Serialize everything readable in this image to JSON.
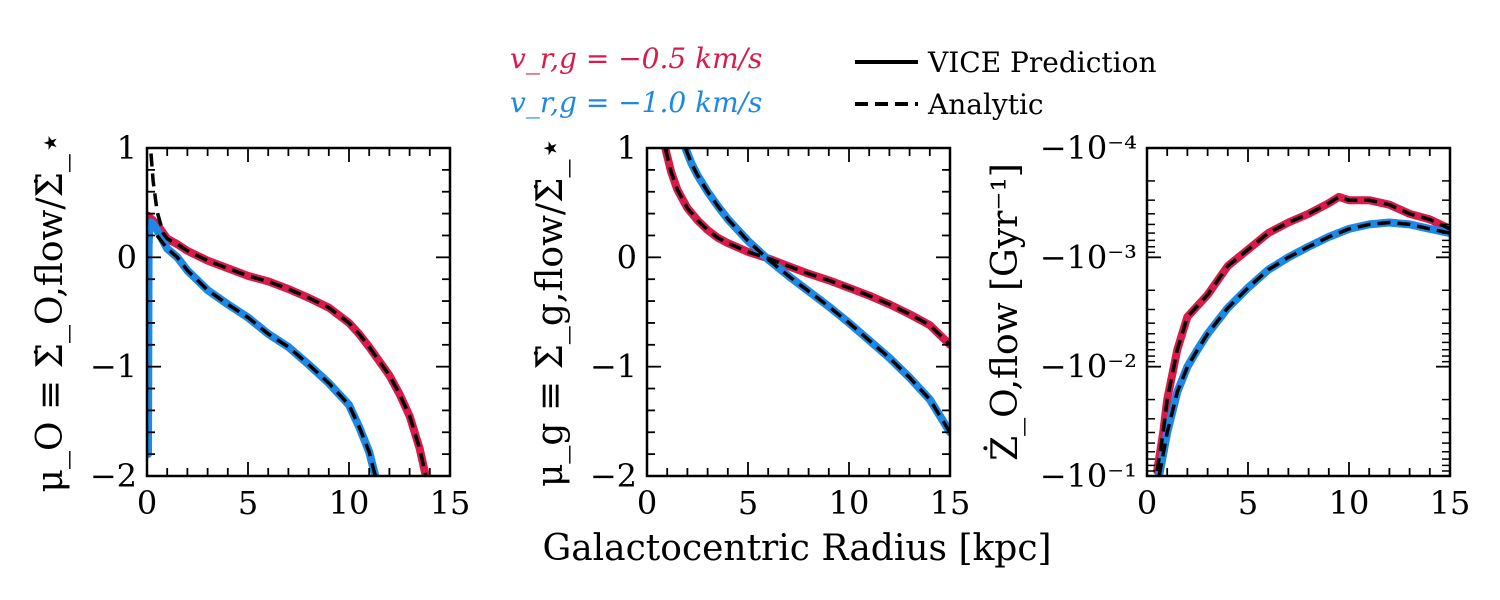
{
  "chart_data": [
    {
      "type": "line",
      "panel": "left",
      "ylabel": "μ_O ≡ Σ̇_O,flow/Σ̇_⋆",
      "xlim": [
        0,
        15
      ],
      "ylim": [
        -2,
        1
      ],
      "xticks": [
        0,
        5,
        10,
        15
      ],
      "xtick_labels": [
        "0",
        "5",
        "10",
        "15"
      ],
      "yticks": [
        -2,
        -1,
        0,
        1
      ],
      "ytick_labels": [
        "−2",
        "−1",
        "0",
        "1"
      ],
      "yscale": "linear",
      "series": [
        {
          "name": "v_r,g = −0.5 km/s",
          "style": "VICE Prediction",
          "color": "#d81b4a",
          "x": [
            0.05,
            0.5,
            1,
            1.5,
            2,
            3,
            4,
            5,
            6,
            7,
            8,
            9,
            10,
            10.5,
            11,
            11.5,
            12,
            12.5,
            13,
            13.5,
            13.8
          ],
          "y": [
            0.38,
            0.3,
            0.17,
            0.12,
            0.06,
            -0.03,
            -0.1,
            -0.17,
            -0.22,
            -0.29,
            -0.37,
            -0.46,
            -0.6,
            -0.7,
            -0.82,
            -0.95,
            -1.08,
            -1.25,
            -1.45,
            -1.75,
            -2.0
          ]
        },
        {
          "name": "v_r,g = −0.5 km/s",
          "style": "Analytic",
          "color": "#000000",
          "x": [
            0.2,
            0.3,
            0.5,
            0.8,
            1,
            1.5,
            2,
            3,
            4,
            5,
            6,
            7,
            8,
            9,
            10,
            10.5,
            11,
            11.5,
            12,
            12.5,
            13,
            13.5,
            13.8
          ],
          "y": [
            0.95,
            0.7,
            0.42,
            0.22,
            0.17,
            0.12,
            0.06,
            -0.03,
            -0.1,
            -0.17,
            -0.22,
            -0.29,
            -0.37,
            -0.46,
            -0.6,
            -0.7,
            -0.82,
            -0.95,
            -1.08,
            -1.25,
            -1.45,
            -1.75,
            -2.0
          ]
        },
        {
          "name": "v_r,g = −1.0 km/s",
          "style": "VICE Prediction",
          "color": "#1e88e5",
          "x": [
            0.05,
            0.08,
            0.12,
            0.2,
            0.3,
            0.5,
            1,
            1.5,
            2,
            3,
            4,
            5,
            6,
            7,
            8,
            9,
            10,
            10.5,
            11,
            11.3
          ],
          "y": [
            -1.8,
            0.1,
            0.3,
            0.32,
            0.3,
            0.25,
            0.08,
            0.0,
            -0.12,
            -0.3,
            -0.43,
            -0.55,
            -0.7,
            -0.82,
            -0.98,
            -1.15,
            -1.35,
            -1.55,
            -1.78,
            -2.0
          ]
        },
        {
          "name": "v_r,g = −1.0 km/s",
          "style": "Analytic",
          "color": "#000000",
          "x": [
            0.5,
            1,
            1.5,
            2,
            3,
            4,
            5,
            6,
            7,
            8,
            9,
            10,
            10.5,
            11,
            11.3
          ],
          "y": [
            0.2,
            0.08,
            0.0,
            -0.12,
            -0.3,
            -0.43,
            -0.55,
            -0.7,
            -0.82,
            -0.98,
            -1.15,
            -1.35,
            -1.55,
            -1.78,
            -2.0
          ]
        }
      ]
    },
    {
      "type": "line",
      "panel": "middle",
      "ylabel": "μ_g ≡ Σ̇_g,flow/Σ̇_⋆",
      "xlim": [
        0,
        15
      ],
      "ylim": [
        -2,
        1
      ],
      "xticks": [
        0,
        5,
        10,
        15
      ],
      "xtick_labels": [
        "0",
        "5",
        "10",
        "15"
      ],
      "yticks": [
        -2,
        -1,
        0,
        1
      ],
      "ytick_labels": [
        "−2",
        "−1",
        "0",
        "1"
      ],
      "yscale": "linear",
      "series": [
        {
          "name": "v_r,g = −0.5 km/s",
          "style": "VICE Prediction",
          "color": "#d81b4a",
          "x": [
            0.9,
            1.2,
            1.5,
            2,
            2.5,
            3,
            3.5,
            4,
            5,
            6,
            7,
            8,
            9,
            10,
            11,
            12,
            13,
            14,
            15
          ],
          "y": [
            1.0,
            0.78,
            0.62,
            0.45,
            0.34,
            0.25,
            0.18,
            0.13,
            0.05,
            -0.01,
            -0.08,
            -0.15,
            -0.21,
            -0.28,
            -0.35,
            -0.43,
            -0.52,
            -0.62,
            -0.8
          ]
        },
        {
          "name": "v_r,g = −0.5 km/s",
          "style": "Analytic",
          "color": "#000000",
          "x": [
            0.9,
            1.2,
            1.5,
            2,
            2.5,
            3,
            3.5,
            4,
            5,
            6,
            7,
            8,
            9,
            10,
            11,
            12,
            13,
            14,
            15
          ],
          "y": [
            1.0,
            0.78,
            0.62,
            0.45,
            0.34,
            0.25,
            0.18,
            0.13,
            0.05,
            -0.01,
            -0.08,
            -0.15,
            -0.21,
            -0.28,
            -0.35,
            -0.43,
            -0.52,
            -0.62,
            -0.8
          ]
        },
        {
          "name": "v_r,g = −1.0 km/s",
          "style": "VICE Prediction",
          "color": "#1e88e5",
          "x": [
            1.9,
            2.2,
            2.5,
            3,
            3.5,
            4,
            5,
            6,
            7,
            8,
            9,
            10,
            11,
            12,
            13,
            14,
            15
          ],
          "y": [
            1.0,
            0.86,
            0.75,
            0.6,
            0.47,
            0.35,
            0.15,
            -0.02,
            -0.17,
            -0.31,
            -0.45,
            -0.6,
            -0.76,
            -0.92,
            -1.1,
            -1.3,
            -1.6
          ]
        },
        {
          "name": "v_r,g = −1.0 km/s",
          "style": "Analytic",
          "color": "#000000",
          "x": [
            1.9,
            2.2,
            2.5,
            3,
            3.5,
            4,
            5,
            6,
            7,
            8,
            9,
            10,
            11,
            12,
            13,
            14,
            15
          ],
          "y": [
            1.0,
            0.86,
            0.75,
            0.6,
            0.47,
            0.35,
            0.15,
            -0.02,
            -0.17,
            -0.31,
            -0.45,
            -0.6,
            -0.76,
            -0.92,
            -1.1,
            -1.3,
            -1.6
          ]
        }
      ]
    },
    {
      "type": "line",
      "panel": "right",
      "ylabel": "Ż_O,flow [Gyr⁻¹]",
      "xlim": [
        0,
        15
      ],
      "ylim": [
        -0.1,
        -0.0001
      ],
      "yscale": "symlog-negative",
      "xticks": [
        0,
        5,
        10,
        15
      ],
      "xtick_labels": [
        "0",
        "5",
        "10",
        "15"
      ],
      "ytick_labels": [
        "−10⁻⁴",
        "−10⁻³",
        "−10⁻²",
        "−10⁻¹"
      ],
      "series": [
        {
          "name": "v_r,g = −0.5 km/s",
          "style": "VICE Prediction",
          "color": "#d81b4a",
          "x": [
            0.5,
            0.8,
            1,
            1.5,
            2,
            3,
            4,
            5,
            6,
            7,
            8,
            9,
            9.5,
            10,
            11,
            12,
            13,
            14,
            15
          ],
          "y": [
            -0.09,
            -0.04,
            -0.02,
            -0.007,
            -0.0035,
            -0.0022,
            -0.0012,
            -0.00085,
            -0.0006,
            -0.00048,
            -0.0004,
            -0.00032,
            -0.00028,
            -0.0003,
            -0.0003,
            -0.00033,
            -0.0004,
            -0.00045,
            -0.00055
          ]
        },
        {
          "name": "v_r,g = −0.5 km/s",
          "style": "Analytic",
          "color": "#000000",
          "x": [
            0.5,
            0.8,
            1,
            1.5,
            2,
            3,
            4,
            5,
            6,
            7,
            8,
            9,
            9.5,
            10,
            11,
            12,
            13,
            14,
            15
          ],
          "y": [
            -0.09,
            -0.04,
            -0.02,
            -0.007,
            -0.0035,
            -0.0022,
            -0.0012,
            -0.00085,
            -0.0006,
            -0.00048,
            -0.0004,
            -0.00032,
            -0.00028,
            -0.0003,
            -0.0003,
            -0.00033,
            -0.0004,
            -0.00045,
            -0.00055
          ]
        },
        {
          "name": "v_r,g = −1.0 km/s",
          "style": "VICE Prediction",
          "color": "#1e88e5",
          "x": [
            0.6,
            1,
            1.5,
            2,
            2.5,
            3,
            4,
            5,
            6,
            7,
            8,
            9,
            10,
            11,
            12,
            13,
            14,
            15
          ],
          "y": [
            -0.1,
            -0.04,
            -0.017,
            -0.01,
            -0.007,
            -0.005,
            -0.0029,
            -0.0019,
            -0.0013,
            -0.001,
            -0.0008,
            -0.00065,
            -0.00055,
            -0.0005,
            -0.00048,
            -0.0005,
            -0.00055,
            -0.0006
          ]
        },
        {
          "name": "v_r,g = −1.0 km/s",
          "style": "Analytic",
          "color": "#000000",
          "x": [
            0.6,
            1,
            1.5,
            2,
            2.5,
            3,
            4,
            5,
            6,
            7,
            8,
            9,
            10,
            11,
            12,
            13,
            14,
            15
          ],
          "y": [
            -0.1,
            -0.04,
            -0.017,
            -0.01,
            -0.007,
            -0.005,
            -0.0029,
            -0.0019,
            -0.0013,
            -0.001,
            -0.0008,
            -0.00065,
            -0.00055,
            -0.0005,
            -0.00048,
            -0.0005,
            -0.00055,
            -0.0006
          ]
        }
      ]
    }
  ],
  "shared_xlabel": "Galactocentric Radius [kpc]",
  "legend": {
    "colors": [
      {
        "label": "v_r,g = −0.5 km/s",
        "color": "#d81b4a"
      },
      {
        "label": "v_r,g = −1.0 km/s",
        "color": "#1e88e5"
      }
    ],
    "styles": [
      {
        "label": "VICE Prediction",
        "dash": "solid"
      },
      {
        "label": "Analytic",
        "dash": "dashed"
      }
    ]
  }
}
